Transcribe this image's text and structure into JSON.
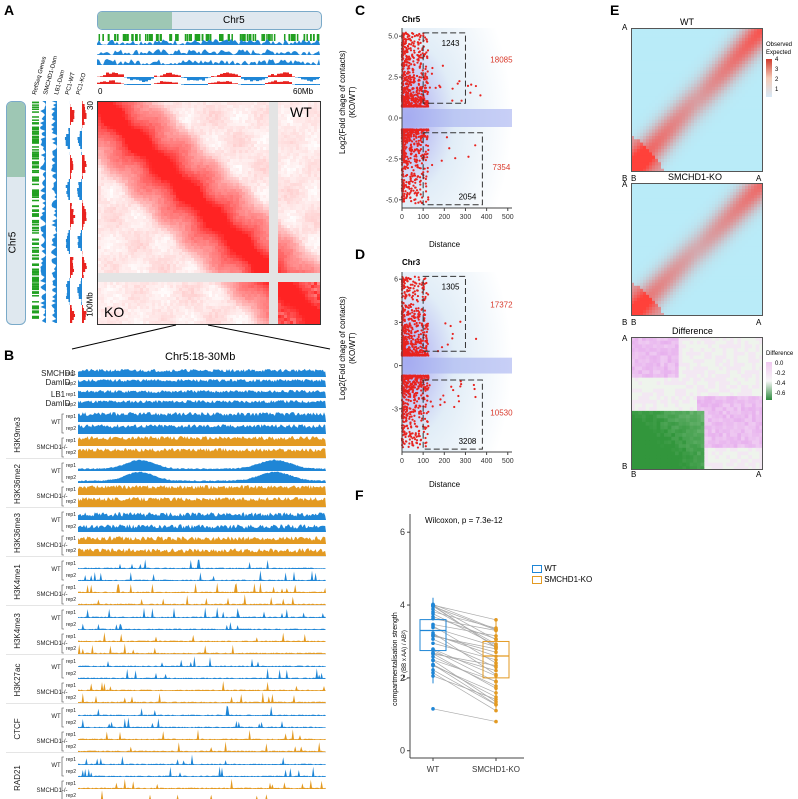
{
  "panels": {
    "a": {
      "letter": "A",
      "chrom": "Chr5",
      "track_names": [
        "RefSeq Genes",
        "SMCHD1-Dam",
        "LB1-Dam",
        "PC1-WT",
        "PC1-KO"
      ],
      "axis_start": "0",
      "axis_end": "60Mb",
      "row_start": "30",
      "row_end": "100Mb",
      "wt": "WT",
      "ko": "KO"
    },
    "b": {
      "letter": "B",
      "region": "Chr5:18-30Mb",
      "top_tracks": [
        {
          "name": "SMCHD1\nDamID"
        },
        {
          "name": "LB1\nDamID"
        }
      ],
      "marks": [
        "H3K9me3",
        "H3K36me2",
        "H3K36me3",
        "H3K4me1",
        "H3K4me3",
        "H3K27ac",
        "CTCF",
        "RAD21"
      ],
      "wt": "WT",
      "ko": "SMCHD1-/-",
      "rep1": "rep1",
      "rep2": "rep2"
    },
    "c": {
      "letter": "C",
      "chrom": "Chr5",
      "ylabel": "Log2(Fold chage of contacts)\n(KO/WT)",
      "xlabel": "Distance",
      "up_box": "1243",
      "up_total": "18085",
      "down_box": "2054",
      "down_total": "7354"
    },
    "d": {
      "letter": "D",
      "chrom": "Chr3",
      "ylabel": "Log2(Fold chage of contacts)\n(KO/WT)",
      "xlabel": "Distance",
      "up_box": "1305",
      "up_total": "17372",
      "down_box": "3208",
      "down_total": "10530"
    },
    "e": {
      "letter": "E",
      "wt": "WT",
      "ko": "SMCHD1-KO",
      "diff": "Difference",
      "legend1_title": "Observed\nExpected",
      "legend1_ticks": [
        "4",
        "3",
        "2",
        "1"
      ],
      "legend2_title": "Difference",
      "legend2_ticks": [
        "0.0",
        "-0.2",
        "-0.4",
        "-0.6"
      ],
      "corner_a": "A",
      "corner_b": "B"
    },
    "f": {
      "letter": "F",
      "stat": "Wilcoxon, p = 7.3e-12",
      "ylabel": "compartmentalisation strength",
      "ylabel2": "(= (BB x AA) / AB²)",
      "legend": [
        "WT",
        "SMCHD1-KO"
      ]
    }
  },
  "chart_data": [
    {
      "type": "scatter",
      "title": "Chr5",
      "xlabel": "Distance",
      "ylabel": "Log2(Fold chage of contacts) (KO/WT)",
      "xlim": [
        0,
        520
      ],
      "ylim": [
        -5.5,
        5.5
      ],
      "x_ticks": [
        0,
        100,
        200,
        300,
        400,
        500
      ],
      "y_ticks": [
        -5.0,
        -2.5,
        0.0,
        2.5,
        5.0
      ],
      "annotations": [
        {
          "text": "1243"
        },
        {
          "text": "18085"
        },
        {
          "text": "2054"
        },
        {
          "text": "7354"
        }
      ]
    },
    {
      "type": "scatter",
      "title": "Chr3",
      "xlabel": "Distance",
      "ylabel": "Log2(Fold chage of contacts) (KO/WT)",
      "xlim": [
        0,
        520
      ],
      "ylim": [
        -6,
        6.5
      ],
      "x_ticks": [
        0,
        100,
        200,
        300,
        400,
        500
      ],
      "y_ticks": [
        -3,
        0,
        3,
        6
      ],
      "annotations": [
        {
          "text": "1305"
        },
        {
          "text": "17372"
        },
        {
          "text": "3208"
        },
        {
          "text": "10530"
        }
      ]
    },
    {
      "type": "box",
      "title": "Wilcoxon, p = 7.3e-12",
      "categories": [
        "WT",
        "SMCHD1-KO"
      ],
      "ylim": [
        -0.2,
        6.5
      ],
      "y_ticks": [
        0,
        2,
        4,
        6
      ],
      "series": [
        {
          "name": "WT",
          "median": 3.3,
          "q1": 2.75,
          "q3": 3.6,
          "min": 1.85,
          "max": 4.2,
          "outliers": [
            1.15
          ]
        },
        {
          "name": "SMCHD1-KO",
          "median": 2.6,
          "q1": 2.0,
          "q3": 3.0,
          "min": 1.15,
          "max": 3.6,
          "outliers": [
            0.8
          ]
        }
      ]
    }
  ],
  "colors": {
    "red": "#e8231f",
    "blue": "#1f86d6",
    "orange": "#e39a22",
    "green": "#21a020",
    "grey": "#666666"
  }
}
